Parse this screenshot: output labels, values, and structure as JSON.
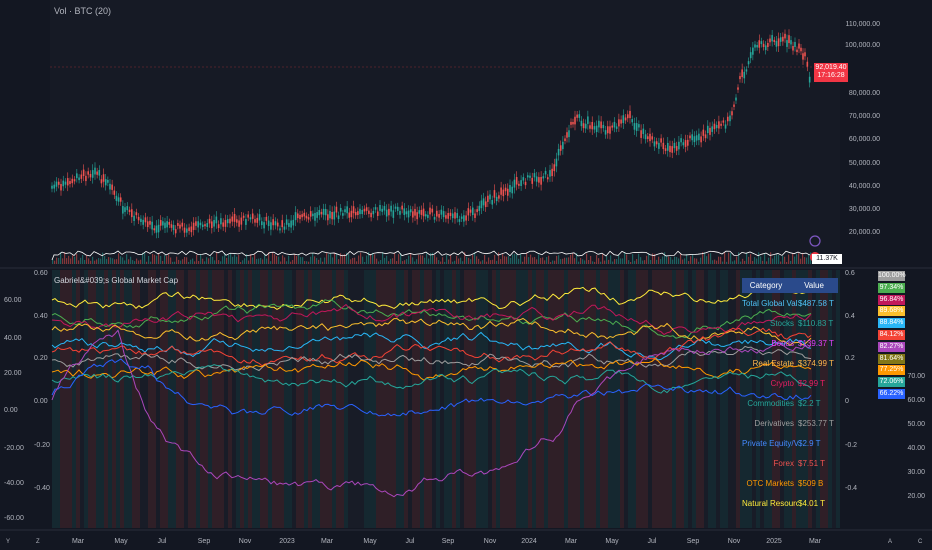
{
  "top_title": "Vol · BTC (20)",
  "indicator_title": "Gabriel&#039;s Global Market Cap",
  "price_axis": [
    "110,000.00",
    "100,000.00",
    "80,000.00",
    "70,000.00",
    "60,000.00",
    "50,000.00",
    "40,000.00",
    "30,000.00",
    "20,000.00"
  ],
  "price_last": "92,019.40",
  "price_countdown": "17:16:28",
  "vol_last": "11.37K",
  "left_axis": [
    "60.00",
    "40.00",
    "20.00",
    "0.00",
    "-20.00",
    "-40.00",
    "-60.00"
  ],
  "mid_axis": [
    "0.60",
    "0.40",
    "0.20",
    "0.00",
    "-0.20",
    "-0.40"
  ],
  "right_axis": [
    "0.6",
    "0.4",
    "0.2",
    "0",
    "-0.2",
    "-0.4"
  ],
  "far_axis": [
    "70.00",
    "60.00",
    "50.00",
    "40.00",
    "30.00",
    "20.00"
  ],
  "x_axis": [
    "Mar",
    "May",
    "Jul",
    "Sep",
    "Nov",
    "2023",
    "Mar",
    "May",
    "Jul",
    "Sep",
    "Nov",
    "2024",
    "Mar",
    "May",
    "Jul",
    "Sep",
    "Nov",
    "2025",
    "Mar"
  ],
  "table": {
    "header_category": "Category",
    "header_value": "Value",
    "rows": [
      {
        "name": "Total Global Value",
        "value": "$487.58 T",
        "color": "#4fc3f7"
      },
      {
        "name": "Stocks",
        "value": "$110.83 T",
        "color": "#26a69a"
      },
      {
        "name": "Bonds",
        "value": "$139.37 T",
        "color": "#e040fb"
      },
      {
        "name": "Real Estate",
        "value": "$374.99 T",
        "color": "#ffb74d"
      },
      {
        "name": "Crypto",
        "value": "$2.99 T",
        "color": "#e91e63"
      },
      {
        "name": "Commodities",
        "value": "$2.2 T",
        "color": "#26a69a"
      },
      {
        "name": "Derivatives",
        "value": "$253.77 T",
        "color": "#9e9e9e"
      },
      {
        "name": "Private Equity/VC",
        "value": "$2.9 T",
        "color": "#448aff"
      },
      {
        "name": "Forex",
        "value": "$7.51 T",
        "color": "#ef5350"
      },
      {
        "name": "OTC Markets",
        "value": "$509 B",
        "color": "#ff9800"
      },
      {
        "name": "Natural Resources",
        "value": "$4.01 T",
        "color": "#ffeb3b"
      }
    ]
  },
  "badges": [
    {
      "text": "100.00%",
      "color": "#9e9e9e"
    },
    {
      "text": "97.34%",
      "color": "#4caf50"
    },
    {
      "text": "96.84%",
      "color": "#c2185b"
    },
    {
      "text": "89.68%",
      "color": "#fbc02d"
    },
    {
      "text": "88.84%",
      "color": "#29b6f6"
    },
    {
      "text": "84.12%",
      "color": "#f44336"
    },
    {
      "text": "82.27%",
      "color": "#ab47bc"
    },
    {
      "text": "81.64%",
      "color": "#827717"
    },
    {
      "text": "77.25%",
      "color": "#ff9800"
    },
    {
      "text": "72.06%",
      "color": "#26a69a"
    },
    {
      "text": "66.22%",
      "color": "#2962ff"
    }
  ],
  "colors": {
    "bg": "#131722",
    "up": "#26a69a",
    "down": "#ef5350"
  }
}
